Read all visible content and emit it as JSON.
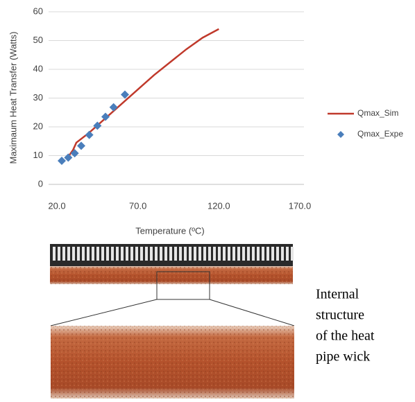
{
  "chart_data": {
    "type": "line",
    "x_label": "Temperature (ºC)",
    "y_label": "Maximaum Heat Transfer (Watts)",
    "xlim": [
      20,
      170
    ],
    "xticks": [
      {
        "value": 20,
        "label": "20.0"
      },
      {
        "value": 70,
        "label": "70.0"
      },
      {
        "value": 120,
        "label": "120.0"
      },
      {
        "value": 170,
        "label": "170.0"
      }
    ],
    "ylim": [
      0,
      60
    ],
    "yticks": [
      0,
      10,
      20,
      30,
      40,
      50,
      60
    ],
    "grid": true,
    "series": [
      {
        "name": "Qmax_Sim",
        "color": "#c0392b",
        "style": "line",
        "x": [
          27.5,
          30,
          32,
          40,
          50,
          60,
          70,
          80,
          90,
          100,
          110,
          120
        ],
        "values": [
          10,
          12,
          14.5,
          18,
          23,
          28,
          33,
          38,
          42.5,
          47,
          51,
          54
        ]
      },
      {
        "name": "Qmax_Expe",
        "color": "#4a7ebb",
        "style": "marker",
        "x": [
          23,
          27,
          31,
          35,
          40,
          45,
          50,
          55,
          62
        ],
        "values": [
          8.2,
          9.3,
          10.8,
          13.4,
          17.2,
          20.4,
          23.5,
          26.8,
          31.2
        ]
      }
    ]
  },
  "caption": {
    "lines": [
      "Internal",
      "structure",
      "of the heat",
      "pipe wick"
    ]
  }
}
